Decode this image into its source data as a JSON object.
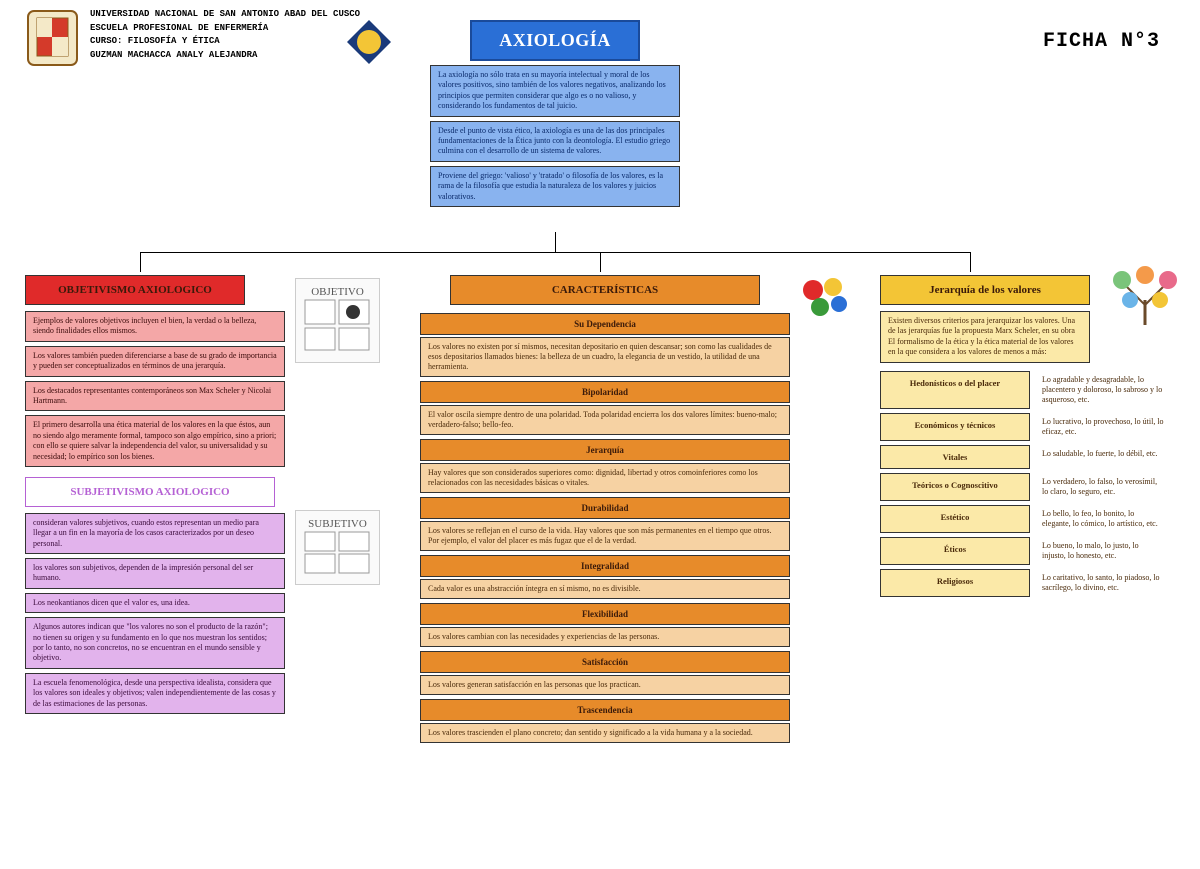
{
  "header": {
    "university": "UNIVERSIDAD NACIONAL DE SAN ANTONIO ABAD DEL CUSCO",
    "school": "ESCUELA PROFESIONAL DE ENFERMERÍA",
    "course": "CURSO: FILOSOFÍA Y ÉTICA",
    "student": "GUZMAN MACHACCA ANALY ALEJANDRA",
    "ficha": "FICHA N°3"
  },
  "colors": {
    "blue_dark": "#2a6fd6",
    "blue_light": "#89b3ef",
    "red": "#e02a2a",
    "pink": "#f4a7a7",
    "purple": "#b561d4",
    "purple_light": "#e2b3ec",
    "orange": "#e78b2a",
    "orange_light": "#f6d2a3",
    "yellow": "#f3c536",
    "yellow_light": "#fbe9a8",
    "text_dark": "#0a2a6a"
  },
  "main": {
    "title": "AXIOLOGÍA",
    "intro": [
      "La axiología no sólo trata en su mayoría intelectual y moral de los valores positivos, sino también de los valores negativos, analizando los principios que permiten considerar que algo es o no valioso, y considerando los fundamentos de tal juicio.",
      "Desde el punto de vista ético, la axiología es una de las dos principales fundamentaciones de la Ética junto con la deontología. El estudio griego culmina con el desarrollo de un sistema de valores.",
      "Proviene del griego: 'valioso' y 'tratado' o filosofía de los valores, es la rama de la filosofía que estudia la naturaleza de los valores y juicios valorativos."
    ]
  },
  "objetivismo": {
    "title": "OBJETIVISMO AXIOLOGICO",
    "items": [
      "Ejemplos de valores objetivos incluyen el bien, la verdad o la belleza, siendo finalidades ellos mismos.",
      "Los valores también pueden diferenciarse a base de su grado de importancia y pueden ser conceptualizados en términos de una jerarquía.",
      "Los destacados representantes contemporáneos son Max Scheler y Nicolai Hartmann.",
      "El primero desarrolla una ética material de los valores en la que éstos, aun no siendo algo meramente formal, tampoco son algo empírico, sino a priori; con ello se quiere salvar la independencia del valor, su universalidad y su necesidad; lo empírico son los bienes."
    ],
    "icon_label": "OBJETIVO"
  },
  "subjetivismo": {
    "title": "SUBJETIVISMO AXIOLOGICO",
    "items": [
      "consideran valores subjetivos, cuando estos representan un medio para llegar a un fin en la mayoría de los casos caracterizados por un deseo personal.",
      "los valores son subjetivos, dependen de la impresión personal del ser humano.",
      "Los neokantianos dicen que el valor es, una idea.",
      "Algunos autores indican que \"los valores no son el producto de la razón\"; no tienen su origen y su fundamento en lo que nos muestran los sentidos; por lo tanto, no son concretos, no se encuentran en el mundo sensible y objetivo.",
      "La escuela fenomenológica, desde una perspectiva idealista, considera que los valores son ideales y objetivos; valen independientemente de las cosas y de las estimaciones de las personas."
    ],
    "icon_label": "SUBJETIVO"
  },
  "caracteristicas": {
    "title": "CARACTERÍSTICAS",
    "items": [
      {
        "name": "Su Dependencia",
        "desc": "Los valores no existen por sí mismos, necesitan depositario en quien descansar; son como las cualidades de esos depositarios llamados bienes: la belleza de un cuadro, la elegancia de un vestido, la utilidad de una herramienta."
      },
      {
        "name": "Bipolaridad",
        "desc": "El valor oscila siempre dentro de una polaridad. Toda polaridad encierra los dos valores límites: bueno-malo; verdadero-falso; bello-feo."
      },
      {
        "name": "Jerarquía",
        "desc": "Hay valores que son considerados superiores como: dignidad, libertad y otros comoinferiores como los relacionados con las necesidades básicas o vitales."
      },
      {
        "name": "Durabilidad",
        "desc": "Los valores se reflejan en el curso de la vida. Hay valores que son más permanentes en el tiempo que otros. Por ejemplo, el valor del placer es más fugaz que el de la verdad."
      },
      {
        "name": "Integralidad",
        "desc": "Cada valor es una abstracción íntegra en sí mismo, no es divisible."
      },
      {
        "name": "Flexibilidad",
        "desc": "Los valores cambian con las necesidades y experiencias de las personas."
      },
      {
        "name": "Satisfacción",
        "desc": "Los valores generan satisfacción en las personas que los practican."
      },
      {
        "name": "Trascendencia",
        "desc": "Los valores trascienden el plano concreto; dan sentido y significado a la vida humana y a la sociedad."
      }
    ]
  },
  "jerarquia": {
    "title": "Jerarquía de los valores",
    "intro": "Existen diversos criterios para jerarquizar los valores. Una de las jerarquías fue la propuesta Marx Scheler, en su obra El formalismo de la ética y la ética material de los valores en la que considera a los valores de menos a más:",
    "rows": [
      {
        "label": "Hedonísticos o del placer",
        "desc": "Lo agradable y desagradable, lo placentero y doloroso, lo sabroso y lo asqueroso, etc."
      },
      {
        "label": "Económicos y técnicos",
        "desc": "Lo lucrativo, lo provechoso, lo útil, lo eficaz, etc."
      },
      {
        "label": "Vitales",
        "desc": "Lo saludable, lo fuerte, lo débil, etc."
      },
      {
        "label": "Teóricos o Cognoscitivo",
        "desc": "Lo verdadero, lo falso, lo verosímil, lo claro, lo seguro, etc."
      },
      {
        "label": "Estético",
        "desc": "Lo bello, lo feo, lo bonito, lo elegante, lo cómico, lo artístico, etc."
      },
      {
        "label": "Éticos",
        "desc": "Lo bueno, lo malo, lo justo, lo injusto, lo honesto, etc."
      },
      {
        "label": "Religiosos",
        "desc": "Lo caritativo, lo santo, lo piadoso, lo sacrílego, lo divino, etc."
      }
    ]
  }
}
